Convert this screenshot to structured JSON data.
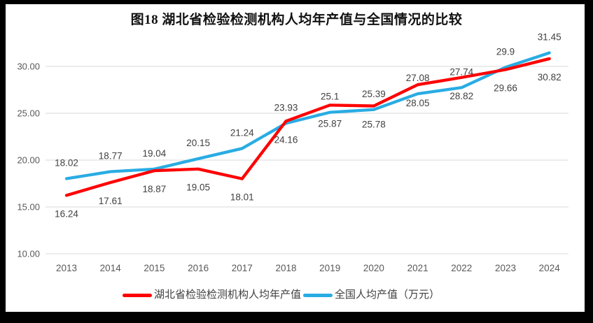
{
  "title": "图18 湖北省检验检测机构人均年产值与全国情况的比较",
  "colors": {
    "frame": "#000000",
    "background": "#FFFFFF",
    "gridline": "#D9D9D9",
    "axis_text": "#595959",
    "data_label_text": "#404040",
    "hubei_red": "#FE0000",
    "national_blue": "#29ACE3"
  },
  "chart_data": {
    "type": "line",
    "title": "图18 湖北省检验检测机构人均年产值与全国情况的比较",
    "x": [
      2013,
      2014,
      2015,
      2016,
      2017,
      2018,
      2019,
      2020,
      2021,
      2022,
      2023,
      2024
    ],
    "series": [
      {
        "name": "湖北省检验检测机构人均年产值",
        "color": "#FE0000",
        "label_position": "below",
        "values": [
          16.24,
          17.61,
          18.87,
          19.05,
          18.01,
          24.16,
          25.87,
          25.78,
          28.05,
          28.82,
          29.66,
          30.82
        ]
      },
      {
        "name": "全国人均产值（万元）",
        "color": "#29ACE3",
        "label_position": "above",
        "values": [
          18.02,
          18.77,
          19.04,
          20.15,
          21.24,
          23.93,
          25.1,
          25.39,
          27.08,
          27.74,
          29.9,
          31.45
        ]
      }
    ],
    "y_ticks": [
      {
        "value": 30,
        "label": "30.00"
      },
      {
        "value": 25,
        "label": "25.00"
      },
      {
        "value": 20,
        "label": "20.00"
      },
      {
        "value": 15,
        "label": "15.00"
      },
      {
        "value": 10,
        "label": "10.00"
      }
    ],
    "ylim": [
      10,
      32.6
    ],
    "grid": true,
    "data_labels": true,
    "legend_position": "bottom"
  }
}
